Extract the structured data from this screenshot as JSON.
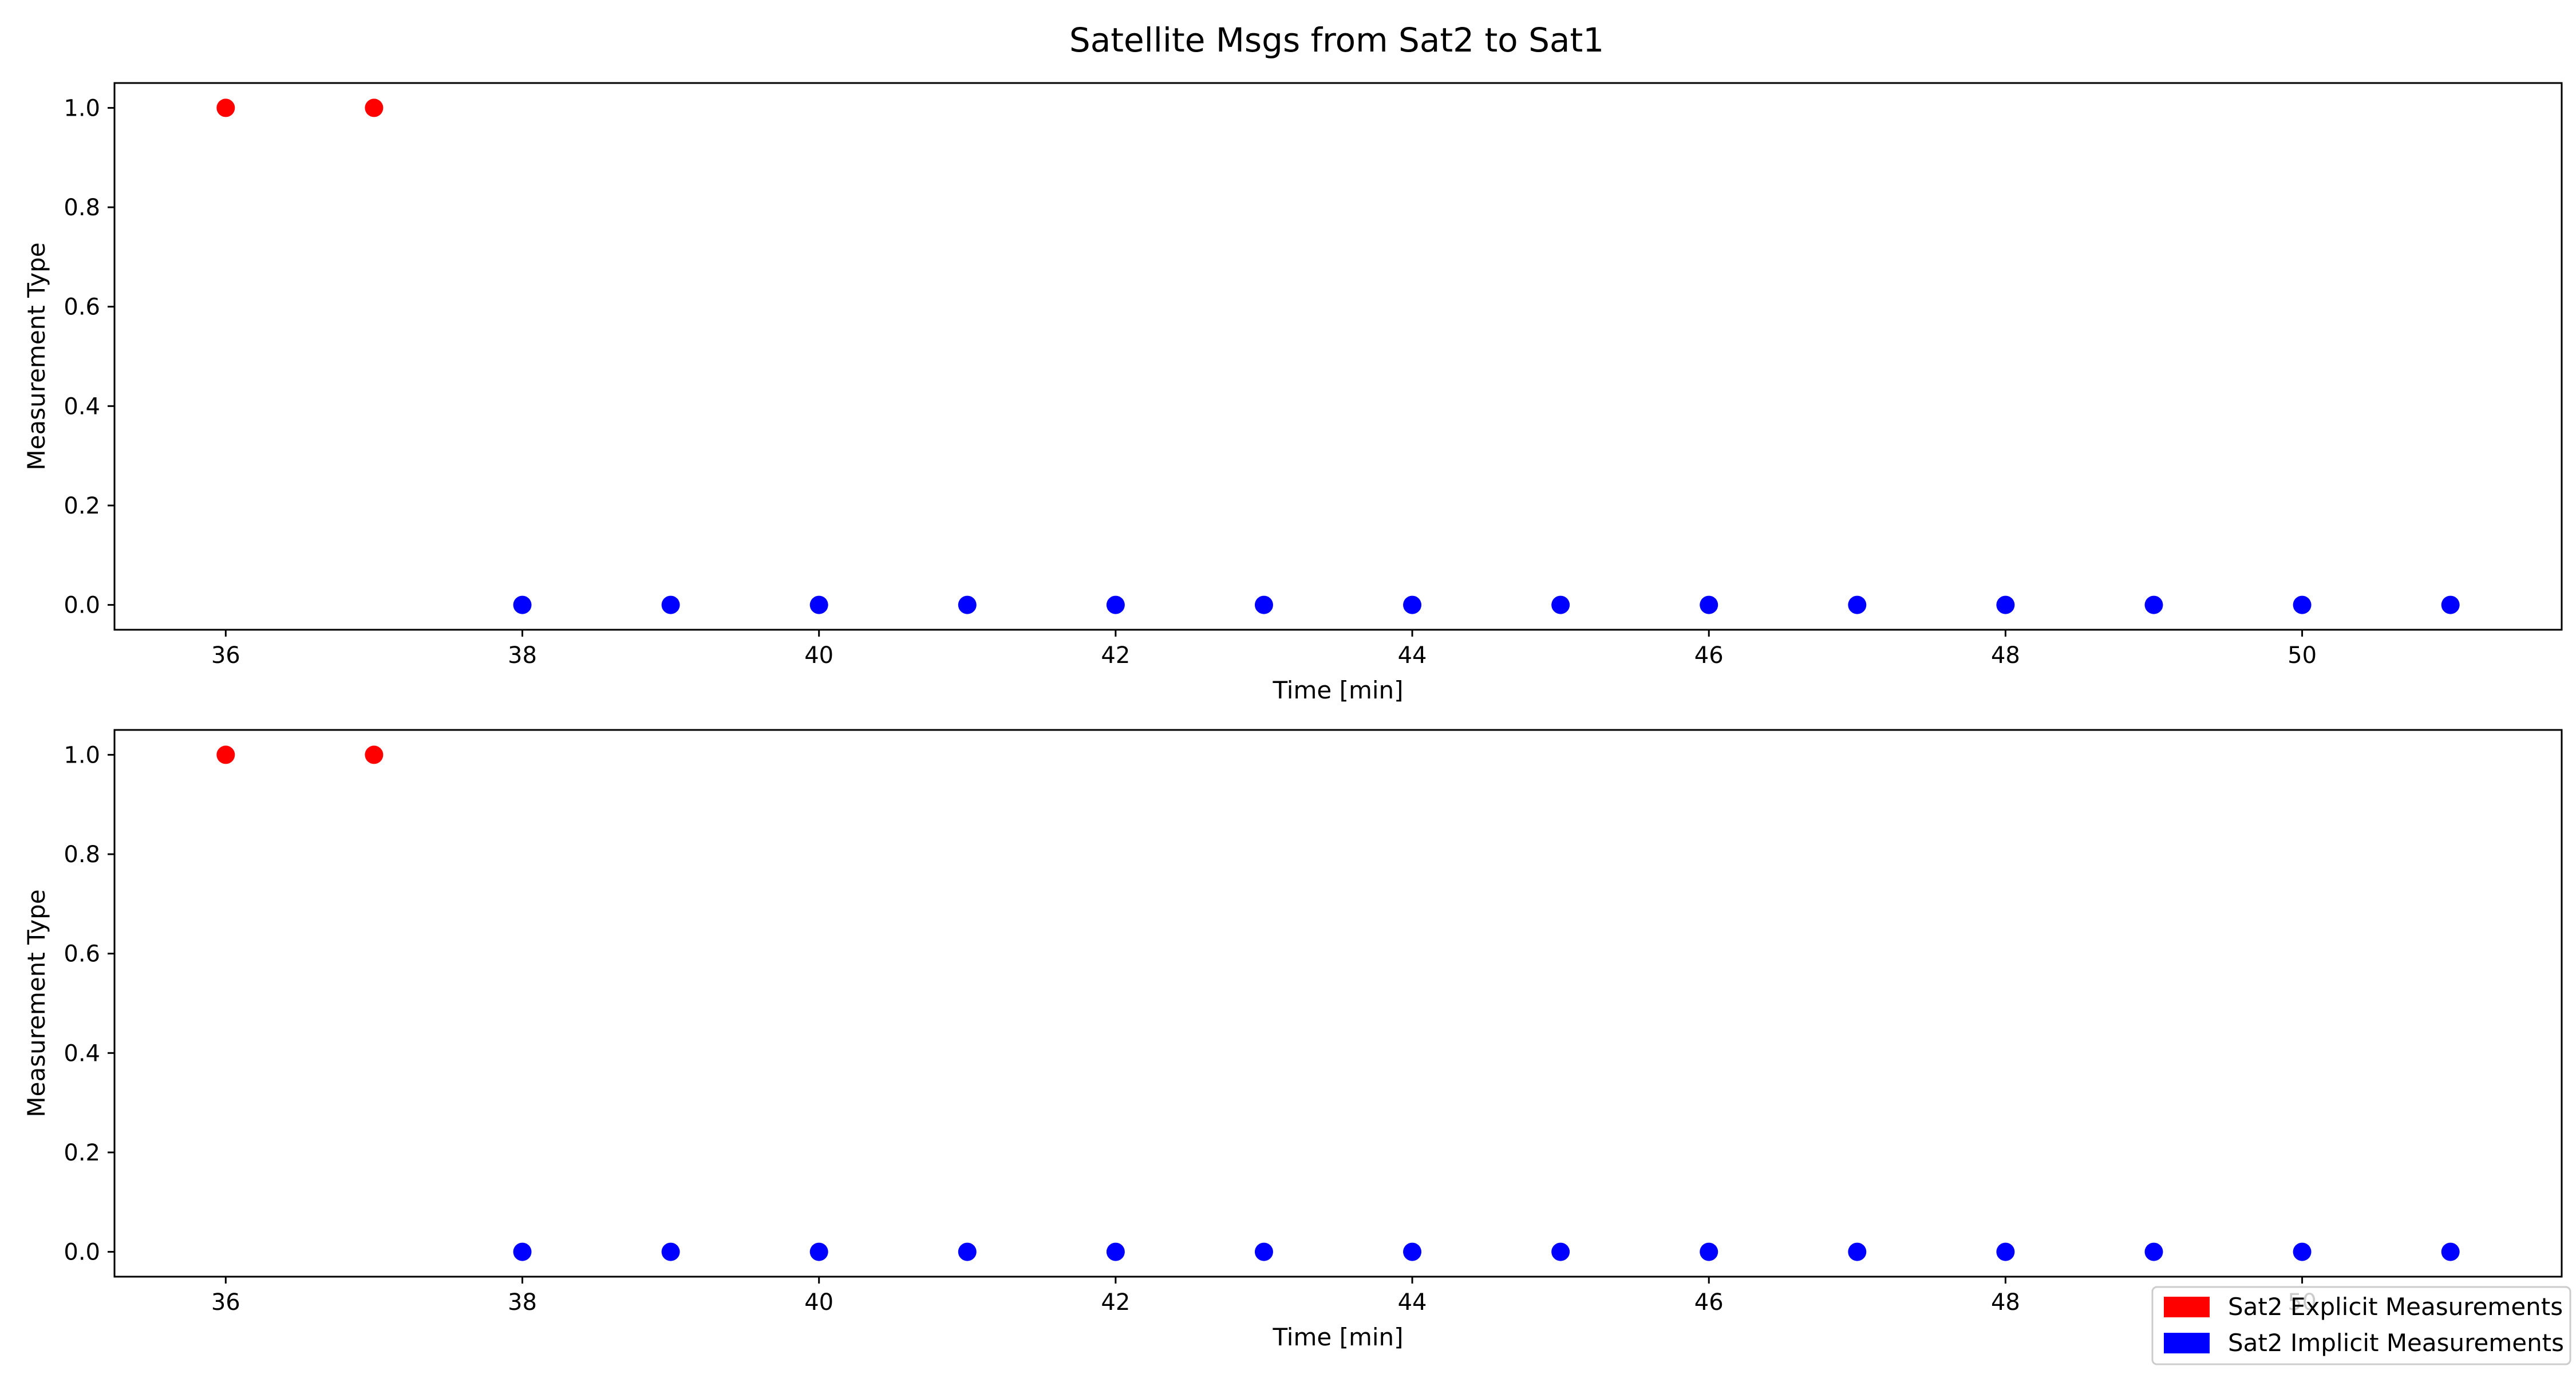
{
  "figure": {
    "title": "Satellite Msgs from Sat2 to Sat1"
  },
  "legend": {
    "placement": "bottom-right",
    "items": [
      {
        "label": "Sat2 Explicit Measurements",
        "color": "#ff0000"
      },
      {
        "label": "Sat2 Implicit Measurements",
        "color": "#0000ff"
      }
    ]
  },
  "chart_data": [
    {
      "type": "scatter",
      "xlabel": "Time [min]",
      "ylabel": "Measurement Type",
      "xlim": [
        35.25,
        51.75
      ],
      "ylim": [
        -0.05,
        1.05
      ],
      "xticks": [
        36,
        38,
        40,
        42,
        44,
        46,
        48,
        50
      ],
      "yticks": [
        0.0,
        0.2,
        0.4,
        0.6,
        0.8,
        1.0
      ],
      "grid": false,
      "series": [
        {
          "color": "#ff0000",
          "x": [
            36,
            37
          ],
          "y": [
            1,
            1
          ]
        },
        {
          "color": "#0000ff",
          "x": [
            38,
            39,
            40,
            41,
            42,
            43,
            44,
            45,
            46,
            47,
            48,
            49,
            50,
            51
          ],
          "y": [
            0,
            0,
            0,
            0,
            0,
            0,
            0,
            0,
            0,
            0,
            0,
            0,
            0,
            0
          ]
        }
      ]
    },
    {
      "type": "scatter",
      "xlabel": "Time [min]",
      "ylabel": "Measurement Type",
      "xlim": [
        35.25,
        51.75
      ],
      "ylim": [
        -0.05,
        1.05
      ],
      "xticks": [
        36,
        38,
        40,
        42,
        44,
        46,
        48,
        50
      ],
      "yticks": [
        0.0,
        0.2,
        0.4,
        0.6,
        0.8,
        1.0
      ],
      "grid": false,
      "series": [
        {
          "color": "#ff0000",
          "x": [
            36,
            37
          ],
          "y": [
            1,
            1
          ]
        },
        {
          "color": "#0000ff",
          "x": [
            38,
            39,
            40,
            41,
            42,
            43,
            44,
            45,
            46,
            47,
            48,
            49,
            50,
            51
          ],
          "y": [
            0,
            0,
            0,
            0,
            0,
            0,
            0,
            0,
            0,
            0,
            0,
            0,
            0,
            0
          ]
        }
      ]
    }
  ]
}
